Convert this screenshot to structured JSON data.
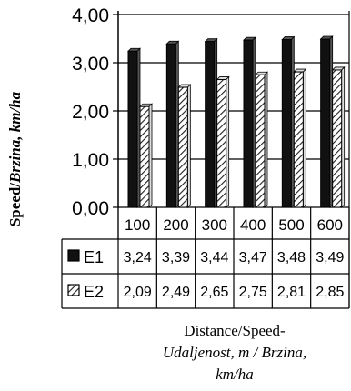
{
  "chart_data": {
    "type": "bar",
    "categories": [
      "100",
      "200",
      "300",
      "400",
      "500",
      "600"
    ],
    "series": [
      {
        "name": "E1",
        "values": [
          3.24,
          3.39,
          3.44,
          3.47,
          3.48,
          3.49
        ],
        "labels": [
          "3,24",
          "3,39",
          "3,44",
          "3,47",
          "3,48",
          "3,49"
        ],
        "color": "#111111"
      },
      {
        "name": "E2",
        "values": [
          2.09,
          2.49,
          2.65,
          2.75,
          2.81,
          2.85
        ],
        "labels": [
          "2,09",
          "2,49",
          "2,65",
          "2,75",
          "2,81",
          "2,85"
        ],
        "color": "#888888",
        "pattern": "diagonal-hatch"
      }
    ],
    "ylim": [
      0,
      4
    ],
    "yticks": [
      "0,00",
      "1,00",
      "2,00",
      "3,00",
      "4,00"
    ],
    "ylabel": "Speed/Brzina, km/ha",
    "ylabel_main": "Speed/",
    "ylabel_alt": "Brzina, km/ha",
    "xlabel_line1": "Distance/Speed-",
    "xlabel_line2": "Udaljenost, m / Brzina,",
    "xlabel_line3": "km/ha",
    "grid": true,
    "legend": "data-table"
  }
}
